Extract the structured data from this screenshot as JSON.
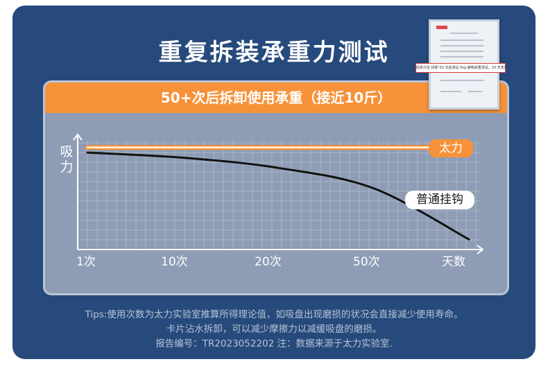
{
  "title": "重复拆装承重力测试",
  "banner": "50+次后拆卸使用承重（接近10斤）",
  "colors": {
    "card": "#264a7c",
    "accent": "#f7923a",
    "panel": "#8e9db5",
    "curve": "#111111",
    "strong_line": "#fff6e0"
  },
  "report_thumbnail": {
    "highlight_text": "经高分拉-拆卸 50 次后测试 5kg 静物承重测试，20 天未见脱落。"
  },
  "chart_data": {
    "type": "line",
    "ylabel": "吸力",
    "categories": [
      "1次",
      "10次",
      "20次",
      "50次",
      "天数"
    ],
    "series": [
      {
        "name": "太力",
        "values": [
          1.0,
          1.0,
          1.0,
          1.0,
          1.0
        ]
      },
      {
        "name": "普通挂钩",
        "values": [
          0.95,
          0.9,
          0.8,
          0.6,
          0.1
        ]
      }
    ],
    "ylim": [
      0,
      1.1
    ],
    "grid": true,
    "legend": "inline labels right"
  },
  "tips": [
    "Tips:使用次数为太力实验室推算所得理论值，如吸盘出现磨损的状况会直接减少使用寿命。",
    "卡片沾水拆卸，可以减少摩擦力以减缓吸盘的磨损。",
    "报告编号：TR2023052202 注：数据来源于太力实验室."
  ]
}
